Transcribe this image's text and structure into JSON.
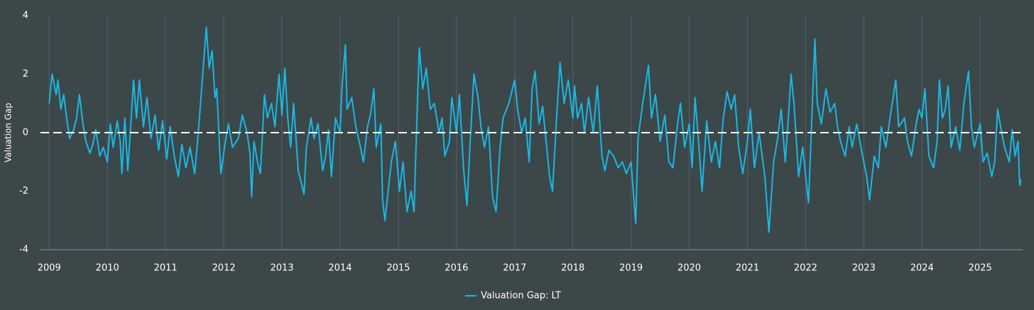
{
  "chart_data": {
    "type": "line",
    "y_label": "Valuation Gap",
    "xlim": [
      2008.85,
      2025.73
    ],
    "xticks": [
      2009,
      2010,
      2011,
      2012,
      2013,
      2014,
      2015,
      2016,
      2017,
      2018,
      2019,
      2020,
      2021,
      2022,
      2023,
      2024,
      2025
    ],
    "ylim": [
      -4,
      4
    ],
    "yticks": [
      -4,
      -2,
      0,
      2,
      4
    ],
    "grid": "x",
    "reference_line": 0,
    "legend": "bottom",
    "x": [
      2009.0,
      2009.05,
      2009.12,
      2009.15,
      2009.2,
      2009.25,
      2009.3,
      2009.35,
      2009.42,
      2009.47,
      2009.52,
      2009.58,
      2009.63,
      2009.7,
      2009.75,
      2009.8,
      2009.87,
      2009.93,
      2010.0,
      2010.05,
      2010.1,
      2010.17,
      2010.22,
      2010.25,
      2010.3,
      2010.35,
      2010.4,
      2010.45,
      2010.5,
      2010.55,
      2010.62,
      2010.68,
      2010.75,
      2010.82,
      2010.88,
      2010.95,
      2011.02,
      2011.08,
      2011.15,
      2011.22,
      2011.28,
      2011.35,
      2011.42,
      2011.5,
      2011.55,
      2011.62,
      2011.7,
      2011.75,
      2011.8,
      2011.85,
      2011.88,
      2011.95,
      2012.02,
      2012.08,
      2012.15,
      2012.25,
      2012.32,
      2012.4,
      2012.45,
      2012.48,
      2012.52,
      2012.58,
      2012.63,
      2012.7,
      2012.75,
      2012.82,
      2012.88,
      2012.95,
      2013.0,
      2013.05,
      2013.1,
      2013.15,
      2013.2,
      2013.28,
      2013.38,
      2013.42,
      2013.5,
      2013.55,
      2013.62,
      2013.7,
      2013.75,
      2013.8,
      2013.85,
      2013.92,
      2014.0,
      2014.03,
      2014.09,
      2014.12,
      2014.2,
      2014.27,
      2014.35,
      2014.4,
      2014.47,
      2014.52,
      2014.58,
      2014.62,
      2014.7,
      2014.73,
      2014.77,
      2014.88,
      2014.95,
      2015.02,
      2015.08,
      2015.15,
      2015.22,
      2015.27,
      2015.32,
      2015.36,
      2015.42,
      2015.48,
      2015.55,
      2015.62,
      2015.7,
      2015.75,
      2015.8,
      2015.88,
      2015.92,
      2016.0,
      2016.05,
      2016.12,
      2016.18,
      2016.23,
      2016.3,
      2016.37,
      2016.42,
      2016.48,
      2016.55,
      2016.62,
      2016.68,
      2016.75,
      2016.8,
      2016.9,
      2017.0,
      2017.05,
      2017.12,
      2017.18,
      2017.25,
      2017.3,
      2017.35,
      2017.42,
      2017.48,
      2017.55,
      2017.6,
      2017.65,
      2017.72,
      2017.78,
      2017.85,
      2017.92,
      2018.0,
      2018.03,
      2018.08,
      2018.15,
      2018.2,
      2018.27,
      2018.35,
      2018.42,
      2018.5,
      2018.55,
      2018.62,
      2018.7,
      2018.78,
      2018.85,
      2018.92,
      2019.0,
      2019.08,
      2019.12,
      2019.2,
      2019.3,
      2019.35,
      2019.42,
      2019.5,
      2019.58,
      2019.65,
      2019.72,
      2019.8,
      2019.85,
      2019.92,
      2020.0,
      2020.05,
      2020.1,
      2020.18,
      2020.22,
      2020.3,
      2020.38,
      2020.45,
      2020.52,
      2020.58,
      2020.65,
      2020.72,
      2020.78,
      2020.85,
      2020.92,
      2021.0,
      2021.05,
      2021.12,
      2021.2,
      2021.3,
      2021.37,
      2021.45,
      2021.52,
      2021.58,
      2021.65,
      2021.7,
      2021.75,
      2021.8,
      2021.88,
      2021.95,
      2022.05,
      2022.16,
      2022.2,
      2022.27,
      2022.35,
      2022.42,
      2022.5,
      2022.55,
      2022.6,
      2022.68,
      2022.75,
      2022.8,
      2022.88,
      2022.95,
      2023.05,
      2023.1,
      2023.18,
      2023.25,
      2023.3,
      2023.38,
      2023.45,
      2023.55,
      2023.6,
      2023.7,
      2023.75,
      2023.82,
      2023.9,
      2023.95,
      2024.0,
      2024.05,
      2024.12,
      2024.2,
      2024.26,
      2024.3,
      2024.35,
      2024.4,
      2024.45,
      2024.5,
      2024.58,
      2024.65,
      2024.72,
      2024.8,
      2024.85,
      2024.9,
      2025.0,
      2025.05,
      2025.12,
      2025.2,
      2025.25,
      2025.3,
      2025.37,
      2025.42,
      2025.5,
      2025.55,
      2025.6,
      2025.65,
      2025.68,
      2025.7
    ],
    "series": [
      {
        "name": "Valuation Gap: LT",
        "color": "#1ab8e3",
        "values": [
          1.0,
          2.0,
          1.3,
          1.8,
          0.8,
          1.3,
          0.5,
          -0.2,
          0.1,
          0.5,
          1.3,
          0.3,
          -0.3,
          -0.7,
          -0.4,
          0.1,
          -0.8,
          -0.5,
          -1.0,
          0.3,
          -0.5,
          0.4,
          -0.3,
          -1.4,
          0.5,
          -1.3,
          0.2,
          1.8,
          0.5,
          1.8,
          0.2,
          1.2,
          -0.2,
          0.6,
          -0.6,
          0.4,
          -0.9,
          0.2,
          -0.8,
          -1.5,
          -0.4,
          -1.2,
          -0.5,
          -1.4,
          -0.3,
          1.5,
          3.6,
          2.2,
          2.8,
          1.2,
          1.5,
          -1.4,
          -0.4,
          0.3,
          -0.5,
          -0.2,
          0.6,
          0.0,
          -0.7,
          -2.2,
          -0.3,
          -1.0,
          -1.4,
          1.3,
          0.5,
          1.0,
          0.2,
          2.0,
          0.6,
          2.2,
          0.5,
          -0.5,
          1.0,
          -1.3,
          -2.1,
          -0.5,
          0.5,
          -0.2,
          0.3,
          -1.3,
          -0.8,
          0.1,
          -1.5,
          0.5,
          0.0,
          1.5,
          3.0,
          0.8,
          1.2,
          0.2,
          -0.5,
          -1.0,
          0.2,
          0.6,
          1.5,
          -0.5,
          0.3,
          -2.3,
          -3.0,
          -1.0,
          -0.3,
          -2.0,
          -1.0,
          -2.7,
          -2.0,
          -2.7,
          0.5,
          2.9,
          1.5,
          2.2,
          0.8,
          1.0,
          0.0,
          0.5,
          -0.8,
          -0.3,
          1.2,
          0.0,
          1.3,
          -1.2,
          -2.5,
          -0.5,
          2.0,
          1.2,
          0.2,
          -0.5,
          0.2,
          -2.2,
          -2.7,
          -0.5,
          0.5,
          1.0,
          1.8,
          0.8,
          0.0,
          0.5,
          -1.0,
          1.5,
          2.1,
          0.3,
          0.9,
          -0.5,
          -1.5,
          -2.0,
          0.5,
          2.4,
          1.0,
          1.8,
          0.5,
          1.6,
          0.5,
          1.0,
          0.0,
          1.2,
          0.0,
          1.6,
          -0.8,
          -1.3,
          -0.6,
          -0.8,
          -1.2,
          -1.0,
          -1.4,
          -1.0,
          -3.1,
          -0.2,
          1.0,
          2.3,
          0.5,
          1.3,
          -0.3,
          0.6,
          -1.0,
          -1.2,
          0.3,
          1.0,
          -0.5,
          0.3,
          -1.2,
          1.2,
          -0.8,
          -2.0,
          0.4,
          -1.0,
          -0.3,
          -1.2,
          0.4,
          1.4,
          0.8,
          1.3,
          -0.5,
          -1.4,
          -0.3,
          0.8,
          -1.2,
          0.0,
          -1.5,
          -3.4,
          -1.0,
          -0.2,
          0.8,
          -1.0,
          0.4,
          2.0,
          1.0,
          -1.5,
          -0.5,
          -2.4,
          3.2,
          1.0,
          0.3,
          1.5,
          0.7,
          1.0,
          0.2,
          -0.3,
          -0.8,
          0.2,
          -0.5,
          0.3,
          -0.5,
          -1.5,
          -2.3,
          -0.8,
          -1.2,
          0.2,
          -0.5,
          0.5,
          1.8,
          0.2,
          0.5,
          -0.3,
          -0.8,
          0.3,
          0.8,
          0.5,
          1.5,
          -0.8,
          -1.2,
          -0.3,
          1.8,
          0.5,
          0.8,
          1.6,
          -0.5,
          0.2,
          -0.6,
          1.0,
          2.1,
          0.2,
          -0.5,
          0.3,
          -1.0,
          -0.7,
          -1.5,
          -1.0,
          0.8,
          0.0,
          -0.5,
          -1.0,
          0.1,
          -0.8,
          -0.3,
          -1.8,
          -1.6
        ]
      }
    ]
  }
}
